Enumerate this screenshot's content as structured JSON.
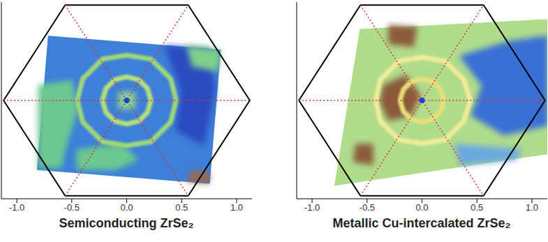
{
  "chart_data": [
    {
      "type": "map",
      "title": "Semiconducting ZrSe₂",
      "xlim": [
        -1.14,
        1.14
      ],
      "ylim": [
        -1.0,
        1.0
      ],
      "xticks": [
        {
          "value": -1.0,
          "label": "-1.0"
        },
        {
          "value": -0.5,
          "label": "-0.5"
        },
        {
          "value": 0.0,
          "label": "0.0"
        },
        {
          "value": 0.5,
          "label": "0.5"
        },
        {
          "value": 1.0,
          "label": "1.0"
        }
      ],
      "tick_labels": "x",
      "regions": [
        {
          "color": "#3d7fd9",
          "x": [
            -0.71,
            0.85,
            0.75,
            -0.81
          ],
          "y": [
            0.65,
            0.51,
            -0.84,
            -0.7
          ]
        },
        {
          "color": "#2a4cc0",
          "x": [
            0.35,
            0.75,
            0.8,
            0.7,
            0.45,
            0.5
          ],
          "y": [
            0.55,
            0.52,
            0.1,
            -0.45,
            -0.3,
            0.1
          ]
        },
        {
          "color": "#6cc890",
          "x": [
            -0.8,
            -0.5,
            -0.45,
            -0.55,
            -0.6,
            -0.8
          ],
          "y": [
            0.15,
            0.2,
            -0.1,
            -0.45,
            -0.68,
            -0.68
          ]
        },
        {
          "color": "#7fd08a",
          "x": [
            0.55,
            0.85,
            0.83,
            0.6
          ],
          "y": [
            0.55,
            0.51,
            0.3,
            0.35
          ]
        },
        {
          "color": "#6cc890",
          "x": [
            -0.45,
            -0.05,
            0.1,
            -0.1,
            -0.45
          ],
          "y": [
            -0.5,
            -0.45,
            -0.6,
            -0.7,
            -0.7
          ]
        },
        {
          "color": "#8ad890",
          "x": [
            -0.07,
            0.07,
            0.07,
            -0.07
          ],
          "y": [
            0.08,
            0.08,
            -0.08,
            -0.08
          ]
        },
        {
          "color": "#9a6a4a",
          "x": [
            0.6,
            0.75,
            0.74,
            0.55
          ],
          "y": [
            -0.72,
            -0.74,
            -0.84,
            -0.82
          ]
        }
      ],
      "contours": [
        {
          "color": "#b8e078",
          "x": [
            0.22,
            0.19,
            0.11,
            0,
            -0.11,
            -0.19,
            -0.22,
            -0.19,
            -0.11,
            0,
            0.11,
            0.19,
            0.22
          ],
          "y": [
            0,
            0.12,
            0.21,
            0.24,
            0.21,
            0.12,
            0,
            -0.12,
            -0.21,
            -0.24,
            -0.21,
            -0.12,
            0
          ]
        },
        {
          "color": "#a0d878",
          "x": [
            0.45,
            0.4,
            0.22,
            0,
            -0.22,
            -0.4,
            -0.45,
            -0.4,
            -0.22,
            0,
            0.22,
            0.4,
            0.45
          ],
          "y": [
            0,
            0.22,
            0.42,
            0.46,
            0.42,
            0.22,
            0,
            -0.22,
            -0.42,
            -0.46,
            -0.42,
            -0.22,
            0
          ]
        }
      ],
      "lines": [
        {
          "color": "#000000",
          "line_style": "solid",
          "x": [
            1.12,
            0.56,
            -0.56,
            -1.12,
            -0.56,
            0.56,
            1.12
          ],
          "y": [
            0,
            0.97,
            0.97,
            0,
            -0.97,
            -0.97,
            0
          ]
        },
        {
          "color": "#e03030",
          "line_style": "dotted",
          "x": [
            -1.12,
            1.12
          ],
          "y": [
            0,
            0
          ]
        },
        {
          "color": "#e03030",
          "line_style": "dotted",
          "x": [
            -0.56,
            0.56
          ],
          "y": [
            -0.97,
            0.97
          ]
        },
        {
          "color": "#e03030",
          "line_style": "dotted",
          "x": [
            -0.56,
            0.56
          ],
          "y": [
            0.97,
            -0.97
          ]
        }
      ],
      "points": [
        {
          "color": "#1f3fd8",
          "marker": "circle",
          "x": [
            0
          ],
          "y": [
            0
          ]
        }
      ]
    },
    {
      "type": "map",
      "title": "Metallic Cu-intercalated ZrSe₂",
      "xlim": [
        -1.14,
        1.14
      ],
      "ylim": [
        -1.0,
        1.0
      ],
      "xticks": [
        {
          "value": -1.0,
          "label": "-1.0"
        },
        {
          "value": -0.5,
          "label": "-0.5"
        },
        {
          "value": 0.0,
          "label": "0.0"
        },
        {
          "value": 0.5,
          "label": "0.5"
        },
        {
          "value": 1.0,
          "label": "1.0"
        }
      ],
      "tick_labels": "x",
      "regions": [
        {
          "color": "#b0dc8c",
          "x": [
            -0.56,
            1.14,
            1.14,
            -0.79
          ],
          "y": [
            0.72,
            0.82,
            -0.54,
            -0.86
          ]
        },
        {
          "color": "#3a6fd6",
          "x": [
            0.35,
            0.8,
            1.14,
            1.14,
            0.75,
            0.45,
            0.55
          ],
          "y": [
            0.45,
            0.6,
            0.65,
            -0.25,
            -0.35,
            -0.15,
            0.15
          ]
        },
        {
          "color": "#6aa8e0",
          "x": [
            0.3,
            0.9,
            0.85,
            0.35
          ],
          "y": [
            -0.45,
            -0.5,
            -0.6,
            -0.65
          ]
        },
        {
          "color": "#8a5a3c",
          "x": [
            -0.3,
            -0.05,
            -0.08,
            -0.3
          ],
          "y": [
            0.76,
            0.74,
            0.55,
            0.58
          ]
        },
        {
          "color": "#8a5a3c",
          "x": [
            -0.35,
            -0.15,
            -0.02,
            -0.1,
            -0.3,
            -0.38
          ],
          "y": [
            0.15,
            0.25,
            0.05,
            -0.15,
            -0.2,
            -0.02
          ]
        },
        {
          "color": "#8a5a3c",
          "x": [
            -0.6,
            -0.45,
            -0.45,
            -0.62
          ],
          "y": [
            -0.45,
            -0.45,
            -0.65,
            -0.62
          ]
        }
      ],
      "contours": [
        {
          "color": "#e6e07a",
          "x": [
            0.2,
            0.17,
            0.1,
            0,
            -0.1,
            -0.17,
            -0.2,
            -0.17,
            -0.1,
            0,
            0.1,
            0.17,
            0.2
          ],
          "y": [
            0,
            0.11,
            0.19,
            0.22,
            0.19,
            0.11,
            0,
            -0.11,
            -0.19,
            -0.22,
            -0.19,
            -0.11,
            0
          ]
        },
        {
          "color": "#f0ec98",
          "x": [
            0.44,
            0.38,
            0.21,
            0,
            -0.21,
            -0.38,
            -0.42,
            -0.38,
            -0.21,
            0,
            0.21,
            0.38,
            0.44
          ],
          "y": [
            0,
            0.21,
            0.4,
            0.44,
            0.4,
            0.21,
            0,
            -0.21,
            -0.4,
            -0.44,
            -0.4,
            -0.21,
            0
          ]
        }
      ],
      "lines": [
        {
          "color": "#000000",
          "line_style": "solid",
          "x": [
            1.12,
            0.56,
            -0.56,
            -1.12,
            -0.56,
            0.56,
            1.12
          ],
          "y": [
            0,
            0.97,
            0.97,
            0,
            -0.97,
            -0.97,
            0
          ]
        },
        {
          "color": "#e03030",
          "line_style": "dotted",
          "x": [
            -1.12,
            1.12
          ],
          "y": [
            0,
            0
          ]
        },
        {
          "color": "#e03030",
          "line_style": "dotted",
          "x": [
            -0.56,
            0.56
          ],
          "y": [
            -0.97,
            0.97
          ]
        },
        {
          "color": "#e03030",
          "line_style": "dotted",
          "x": [
            -0.56,
            0.56
          ],
          "y": [
            0.97,
            -0.97
          ]
        }
      ],
      "points": [
        {
          "color": "#1f3fd8",
          "marker": "circle",
          "x": [
            0
          ],
          "y": [
            0
          ]
        }
      ]
    }
  ]
}
